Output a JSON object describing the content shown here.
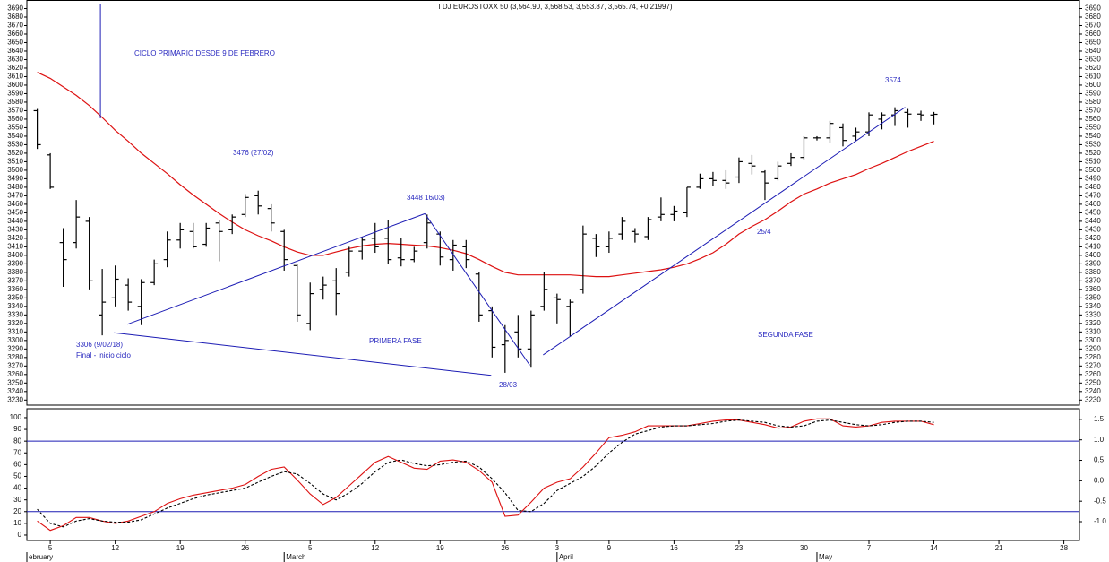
{
  "chart_data": [
    {
      "type": "ohlc",
      "title": "I DJ EUROSTOXX 50 (3,564.90, 3,568.53, 3,553.87, 3,565.74, +0.21997)",
      "x": [
        -1,
        0,
        1,
        2,
        3,
        4,
        5,
        6,
        7,
        8,
        9,
        10,
        11,
        12,
        13,
        14,
        15,
        16,
        17,
        18,
        19,
        20,
        21,
        22,
        23,
        24,
        25,
        26,
        27,
        28,
        29,
        30,
        31,
        32,
        33,
        34,
        35,
        36,
        37,
        38,
        39,
        40,
        41,
        42,
        43,
        44,
        45,
        46,
        47,
        48,
        49,
        50,
        51,
        52,
        53,
        54,
        55,
        56,
        57,
        58,
        59,
        60,
        61,
        62,
        63,
        64,
        65,
        66,
        67,
        68
      ],
      "open": [
        3570,
        3518,
        3415,
        3415,
        3440,
        3330,
        3350,
        3365,
        3340,
        3368,
        3395,
        3418,
        3428,
        3413,
        3438,
        3430,
        3448,
        3470,
        3455,
        3428,
        3388,
        3320,
        3360,
        3370,
        3380,
        3405,
        3420,
        3420,
        3397,
        3395,
        3415,
        3425,
        3395,
        3410,
        3378,
        3335,
        3295,
        3310,
        3290,
        3340,
        3350,
        3340,
        3360,
        3420,
        3410,
        3425,
        3428,
        3422,
        3445,
        3448,
        3450,
        3480,
        3490,
        3488,
        3492,
        3508,
        3498,
        3490,
        3508,
        3515,
        3538,
        3538,
        3550,
        3540,
        3545,
        3560,
        3565,
        3568,
        3566,
        3564.9
      ],
      "high": [
        3572,
        3520,
        3432,
        3465,
        3445,
        3384,
        3388,
        3373,
        3372,
        3395,
        3428,
        3438,
        3438,
        3438,
        3442,
        3448,
        3472,
        3476,
        3460,
        3430,
        3390,
        3368,
        3375,
        3385,
        3410,
        3422,
        3438,
        3442,
        3420,
        3410,
        3448,
        3428,
        3418,
        3418,
        3380,
        3340,
        3318,
        3330,
        3335,
        3380,
        3355,
        3348,
        3435,
        3425,
        3428,
        3445,
        3432,
        3445,
        3468,
        3458,
        3480,
        3496,
        3498,
        3500,
        3515,
        3518,
        3500,
        3510,
        3520,
        3540,
        3540,
        3558,
        3555,
        3550,
        3568,
        3568,
        3574,
        3572,
        3570,
        3568.53
      ],
      "low": [
        3525,
        3478,
        3363,
        3408,
        3360,
        3306,
        3340,
        3335,
        3318,
        3365,
        3386,
        3408,
        3408,
        3410,
        3393,
        3425,
        3445,
        3448,
        3428,
        3382,
        3322,
        3312,
        3348,
        3330,
        3375,
        3395,
        3403,
        3390,
        3387,
        3392,
        3408,
        3388,
        3382,
        3385,
        3322,
        3280,
        3262,
        3280,
        3268,
        3335,
        3320,
        3305,
        3355,
        3398,
        3403,
        3418,
        3415,
        3418,
        3440,
        3440,
        3445,
        3478,
        3482,
        3478,
        3485,
        3495,
        3465,
        3488,
        3505,
        3512,
        3535,
        3532,
        3528,
        3535,
        3540,
        3548,
        3552,
        3550,
        3558,
        3553.87
      ],
      "close": [
        3530,
        3480,
        3395,
        3445,
        3370,
        3345,
        3372,
        3345,
        3368,
        3390,
        3418,
        3430,
        3410,
        3432,
        3428,
        3445,
        3468,
        3458,
        3438,
        3395,
        3330,
        3355,
        3365,
        3355,
        3405,
        3418,
        3410,
        3395,
        3395,
        3405,
        3438,
        3398,
        3412,
        3395,
        3330,
        3292,
        3300,
        3290,
        3330,
        3360,
        3348,
        3345,
        3425,
        3410,
        3420,
        3440,
        3425,
        3442,
        3448,
        3452,
        3480,
        3490,
        3488,
        3485,
        3510,
        3505,
        3485,
        3505,
        3515,
        3538,
        3538,
        3555,
        3535,
        3545,
        3565,
        3565,
        3570,
        3566,
        3565,
        3565.74
      ],
      "color": "#000000",
      "series": [
        {
          "color": "#dd1111",
          "values": [
            3615,
            3608,
            3598,
            3588,
            3576,
            3562,
            3547,
            3534,
            3520,
            3508,
            3496,
            3483,
            3471,
            3460,
            3449,
            3439,
            3430,
            3423,
            3417,
            3410,
            3404,
            3400,
            3400,
            3404,
            3408,
            3411,
            3413,
            3414,
            3413,
            3412,
            3411,
            3409,
            3406,
            3402,
            3395,
            3387,
            3380,
            3377,
            3377,
            3377,
            3377,
            3377,
            3376,
            3375,
            3375,
            3377,
            3379,
            3381,
            3383,
            3386,
            3390,
            3396,
            3403,
            3413,
            3425,
            3434,
            3442,
            3452,
            3463,
            3472,
            3478,
            3485,
            3490,
            3495,
            3502,
            3508,
            3515,
            3522,
            3528,
            3534
          ]
        }
      ],
      "lines": [
        {
          "color": "#1c1cb4",
          "x": [
            3.86,
            3.86
          ],
          "y": [
            3695,
            3561
          ]
        },
        {
          "color": "#1c1cb4",
          "x": [
            5.93,
            28.83
          ],
          "y": [
            3319,
            3449
          ]
        },
        {
          "color": "#1c1cb4",
          "x": [
            28.83,
            36.9
          ],
          "y": [
            3449,
            3271
          ]
        },
        {
          "color": "#1c1cb4",
          "x": [
            4.9,
            33.93
          ],
          "y": [
            3309,
            3259
          ]
        },
        {
          "color": "#1c1cb4",
          "x": [
            37.93,
            65.79
          ],
          "y": [
            3283,
            3574
          ]
        }
      ],
      "annotations": [
        "CICLO PRIMARIO DESDE 9 DE FEBRERO",
        "3476 (27/02)",
        "3448 16/03)",
        "3574",
        "3306 (9/02/18)",
        "Final - inicio ciclo",
        "PRIMERA FASE",
        "SEGUNDA FASE",
        "28/03",
        "25/4"
      ],
      "xlim": [
        -1.8,
        79.2
      ],
      "ylim": [
        3224,
        3700
      ],
      "yticks": [
        3230,
        3240,
        3250,
        3260,
        3270,
        3280,
        3290,
        3300,
        3310,
        3320,
        3330,
        3340,
        3350,
        3360,
        3370,
        3380,
        3390,
        3400,
        3410,
        3420,
        3430,
        3440,
        3450,
        3460,
        3470,
        3480,
        3490,
        3500,
        3510,
        3520,
        3530,
        3540,
        3550,
        3560,
        3570,
        3580,
        3590,
        3600,
        3610,
        3620,
        3630,
        3640,
        3650,
        3660,
        3670,
        3680,
        3690
      ]
    },
    {
      "type": "line",
      "x": [
        -1,
        0,
        1,
        2,
        3,
        4,
        5,
        6,
        7,
        8,
        9,
        10,
        11,
        12,
        13,
        14,
        15,
        16,
        17,
        18,
        19,
        20,
        21,
        22,
        23,
        24,
        25,
        26,
        27,
        28,
        29,
        30,
        31,
        32,
        33,
        34,
        35,
        36,
        37,
        38,
        39,
        40,
        41,
        42,
        43,
        44,
        45,
        46,
        47,
        48,
        49,
        50,
        51,
        52,
        53,
        54,
        55,
        56,
        57,
        58,
        59,
        60,
        61,
        62,
        63,
        64,
        65,
        66,
        67,
        68
      ],
      "series": [
        {
          "color": "#dd1111",
          "dash": false,
          "values": [
            12,
            4,
            8,
            15,
            15,
            12,
            10,
            12,
            16,
            20,
            27,
            31,
            34,
            36,
            38,
            40,
            43,
            50,
            56,
            58,
            47,
            35,
            26,
            32,
            42,
            52,
            62,
            67,
            62,
            57,
            56,
            63,
            64,
            62,
            55,
            45,
            16,
            17,
            28,
            40,
            45,
            48,
            58,
            70,
            83,
            85,
            88,
            93,
            93,
            93,
            93,
            95,
            97,
            98,
            98,
            96,
            94,
            91,
            92,
            97,
            99,
            99,
            93,
            92,
            93,
            96,
            97,
            97,
            97,
            94
          ]
        },
        {
          "color": "#000000",
          "dash": true,
          "values": [
            22,
            10,
            7,
            12,
            14,
            12,
            11,
            11,
            13,
            18,
            23,
            27,
            31,
            34,
            36,
            38,
            40,
            45,
            50,
            54,
            52,
            44,
            35,
            30,
            36,
            44,
            54,
            62,
            64,
            61,
            59,
            60,
            62,
            63,
            58,
            48,
            36,
            21,
            20,
            27,
            38,
            44,
            50,
            59,
            70,
            79,
            86,
            89,
            92,
            93,
            93,
            94,
            95,
            97,
            98,
            97,
            96,
            93,
            92,
            93,
            97,
            98,
            96,
            94,
            93,
            94,
            96,
            97,
            97,
            96
          ]
        }
      ],
      "hlines": [
        80,
        20
      ],
      "hline_color": "#1c1cb4",
      "xlim": [
        -1.8,
        79.2
      ],
      "xticks": [
        {
          "value": 0,
          "label": "5"
        },
        {
          "value": 5,
          "label": "12"
        },
        {
          "value": 10,
          "label": "19"
        },
        {
          "value": 15,
          "label": "26"
        },
        {
          "value": 20,
          "label": "5"
        },
        {
          "value": 25,
          "label": "12"
        },
        {
          "value": 30,
          "label": "19"
        },
        {
          "value": 35,
          "label": "26"
        },
        {
          "value": 39,
          "label": "3"
        },
        {
          "value": 43,
          "label": "9"
        },
        {
          "value": 48,
          "label": "16"
        },
        {
          "value": 53,
          "label": "23"
        },
        {
          "value": 58,
          "label": "30"
        },
        {
          "value": 63,
          "label": "7"
        },
        {
          "value": 68,
          "label": "14"
        },
        {
          "value": 73,
          "label": "21"
        },
        {
          "value": 78,
          "label": "28"
        }
      ],
      "months": [
        {
          "value": -1.8,
          "label": "ebruary"
        },
        {
          "value": 18,
          "label": "March"
        },
        {
          "value": 39,
          "label": "April"
        },
        {
          "value": 59,
          "label": "May"
        }
      ],
      "ylim": [
        -4.6,
        107.6
      ],
      "yticks": [
        0,
        10,
        20,
        30,
        40,
        50,
        60,
        70,
        80,
        90,
        100
      ],
      "y2lim": [
        -1.46,
        1.76
      ],
      "y2ticks": [
        1.5,
        {
          "value": 1,
          "label": "1.0"
        },
        0.5,
        {
          "value": 0,
          "label": "0.0"
        },
        -0.5,
        {
          "value": -1,
          "label": "-1.0"
        }
      ]
    }
  ]
}
